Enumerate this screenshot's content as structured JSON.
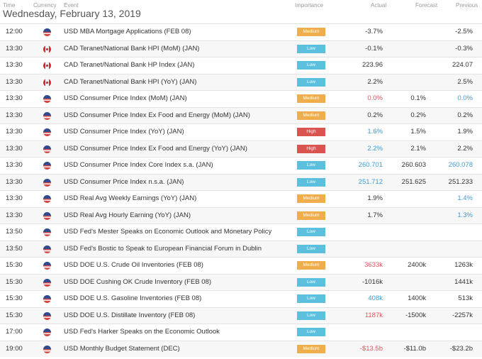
{
  "header": {
    "time": "Time",
    "currency": "Currency",
    "event": "Event",
    "importance": "Importance",
    "actual": "Actual",
    "forecast": "Forecast",
    "previous": "Previous"
  },
  "date": "Wednesday, February 13, 2019",
  "colors": {
    "low": "#5bc0de",
    "medium": "#f0ad4e",
    "high": "#d9534f",
    "negative": "#e0545f",
    "positive": "#3d9ad6"
  },
  "rows": [
    {
      "time": "12:00",
      "flag": "us-flag-icon",
      "event": "USD MBA Mortgage Applications (FEB 08)",
      "importance": "Medium",
      "actual": "-3.7%",
      "forecast": "",
      "previous": "-2.5%",
      "actual_color": "",
      "previous_color": ""
    },
    {
      "time": "13:30",
      "flag": "ca-flag-icon",
      "event": "CAD Teranet/National Bank HPI (MoM) (JAN)",
      "importance": "Low",
      "actual": "-0.1%",
      "forecast": "",
      "previous": "-0.3%",
      "actual_color": "",
      "previous_color": ""
    },
    {
      "time": "13:30",
      "flag": "ca-flag-icon",
      "event": "CAD Teranet/National Bank HP Index (JAN)",
      "importance": "Low",
      "actual": "223.96",
      "forecast": "",
      "previous": "224.07",
      "actual_color": "",
      "previous_color": ""
    },
    {
      "time": "13:30",
      "flag": "ca-flag-icon",
      "event": "CAD Teranet/National Bank HPI (YoY) (JAN)",
      "importance": "Low",
      "actual": "2.2%",
      "forecast": "",
      "previous": "2.5%",
      "actual_color": "",
      "previous_color": ""
    },
    {
      "time": "13:30",
      "flag": "us-flag-icon",
      "event": "USD Consumer Price Index (MoM) (JAN)",
      "importance": "Medium",
      "actual": "0.0%",
      "forecast": "0.1%",
      "previous": "0.0%",
      "actual_color": "neg",
      "previous_color": "pos"
    },
    {
      "time": "13:30",
      "flag": "us-flag-icon",
      "event": "USD Consumer Price Index Ex Food and Energy (MoM) (JAN)",
      "importance": "Medium",
      "actual": "0.2%",
      "forecast": "0.2%",
      "previous": "0.2%",
      "actual_color": "",
      "previous_color": ""
    },
    {
      "time": "13:30",
      "flag": "us-flag-icon",
      "event": "USD Consumer Price Index (YoY) (JAN)",
      "importance": "High",
      "actual": "1.6%",
      "forecast": "1.5%",
      "previous": "1.9%",
      "actual_color": "pos",
      "previous_color": ""
    },
    {
      "time": "13:30",
      "flag": "us-flag-icon",
      "event": "USD Consumer Price Index Ex Food and Energy (YoY) (JAN)",
      "importance": "High",
      "actual": "2.2%",
      "forecast": "2.1%",
      "previous": "2.2%",
      "actual_color": "pos",
      "previous_color": ""
    },
    {
      "time": "13:30",
      "flag": "us-flag-icon",
      "event": "USD Consumer Price Index Core Index s.a. (JAN)",
      "importance": "Low",
      "actual": "260.701",
      "forecast": "260.603",
      "previous": "260.078",
      "actual_color": "pos",
      "previous_color": "pos"
    },
    {
      "time": "13:30",
      "flag": "us-flag-icon",
      "event": "USD Consumer Price Index n.s.a. (JAN)",
      "importance": "Low",
      "actual": "251.712",
      "forecast": "251.625",
      "previous": "251.233",
      "actual_color": "pos",
      "previous_color": ""
    },
    {
      "time": "13:30",
      "flag": "us-flag-icon",
      "event": "USD Real Avg Weekly Earnings (YoY) (JAN)",
      "importance": "Medium",
      "actual": "1.9%",
      "forecast": "",
      "previous": "1.4%",
      "actual_color": "",
      "previous_color": "pos"
    },
    {
      "time": "13:30",
      "flag": "us-flag-icon",
      "event": "USD Real Avg Hourly Earning (YoY) (JAN)",
      "importance": "Medium",
      "actual": "1.7%",
      "forecast": "",
      "previous": "1.3%",
      "actual_color": "",
      "previous_color": "pos"
    },
    {
      "time": "13:50",
      "flag": "us-flag-icon",
      "event": "USD Fed's Mester Speaks on Economic Outlook and Monetary Policy",
      "importance": "Low",
      "actual": "",
      "forecast": "",
      "previous": "",
      "actual_color": "",
      "previous_color": ""
    },
    {
      "time": "13:50",
      "flag": "us-flag-icon",
      "event": "USD Fed's Bostic to Speak to European Financial Forum in Dublin",
      "importance": "Low",
      "actual": "",
      "forecast": "",
      "previous": "",
      "actual_color": "",
      "previous_color": ""
    },
    {
      "time": "15:30",
      "flag": "us-flag-icon",
      "event": "USD DOE U.S. Crude Oil Inventories (FEB 08)",
      "importance": "Medium",
      "actual": "3633k",
      "forecast": "2400k",
      "previous": "1263k",
      "actual_color": "neg",
      "previous_color": ""
    },
    {
      "time": "15:30",
      "flag": "us-flag-icon",
      "event": "USD DOE Cushing OK Crude Inventory (FEB 08)",
      "importance": "Low",
      "actual": "-1016k",
      "forecast": "",
      "previous": "1441k",
      "actual_color": "",
      "previous_color": ""
    },
    {
      "time": "15:30",
      "flag": "us-flag-icon",
      "event": "USD DOE U.S. Gasoline Inventories (FEB 08)",
      "importance": "Low",
      "actual": "408k",
      "forecast": "1400k",
      "previous": "513k",
      "actual_color": "pos",
      "previous_color": ""
    },
    {
      "time": "15:30",
      "flag": "us-flag-icon",
      "event": "USD DOE U.S. Distillate Inventory (FEB 08)",
      "importance": "Low",
      "actual": "1187k",
      "forecast": "-1500k",
      "previous": "-2257k",
      "actual_color": "neg",
      "previous_color": ""
    },
    {
      "time": "17:00",
      "flag": "us-flag-icon",
      "event": "USD Fed's Harker Speaks on the Economic Outlook",
      "importance": "Low",
      "actual": "",
      "forecast": "",
      "previous": "",
      "actual_color": "",
      "previous_color": ""
    },
    {
      "time": "19:00",
      "flag": "us-flag-icon",
      "event": "USD Monthly Budget Statement (DEC)",
      "importance": "Medium",
      "actual": "-$13.5b",
      "forecast": "-$11.0b",
      "previous": "-$23.2b",
      "actual_color": "neg",
      "previous_color": ""
    }
  ]
}
